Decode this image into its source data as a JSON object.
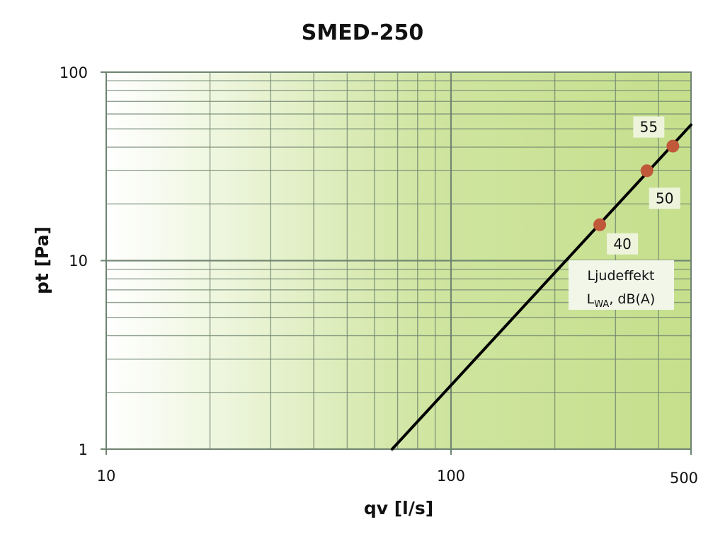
{
  "chart_data": {
    "type": "line",
    "title": "SMED-250",
    "xlabel": "qv [l/s]",
    "ylabel": "pt [Pa]",
    "xscale": "log",
    "yscale": "log",
    "xlim": [
      10,
      500
    ],
    "ylim": [
      1,
      100
    ],
    "x_tick_labels": [
      "10",
      "100",
      "500"
    ],
    "y_tick_labels": [
      "100",
      "10",
      "1"
    ],
    "x_ticks": [
      10,
      100,
      500
    ],
    "y_ticks": [
      100,
      10,
      1
    ],
    "grid": true,
    "series": [
      {
        "type": "line",
        "x": [
          67.5,
          500
        ],
        "y": [
          1,
          52.5
        ]
      },
      {
        "type": "scatter",
        "points": [
          {
            "x": 270,
            "y": 15.5,
            "label": "40"
          },
          {
            "x": 370,
            "y": 30,
            "label": "50"
          },
          {
            "x": 440,
            "y": 40.5,
            "label": "55"
          }
        ]
      }
    ],
    "annotation": {
      "line1": "Ljudeffekt",
      "line2_main": "L",
      "line2_sub": "WA",
      "line2_rest": ", dB(A)"
    },
    "colors": {
      "line": "#000000",
      "marker": "#c0583a",
      "plot_bg_light": "#ffffff",
      "plot_bg_dark": "#c5df8c",
      "grid": "#6e8370"
    }
  }
}
